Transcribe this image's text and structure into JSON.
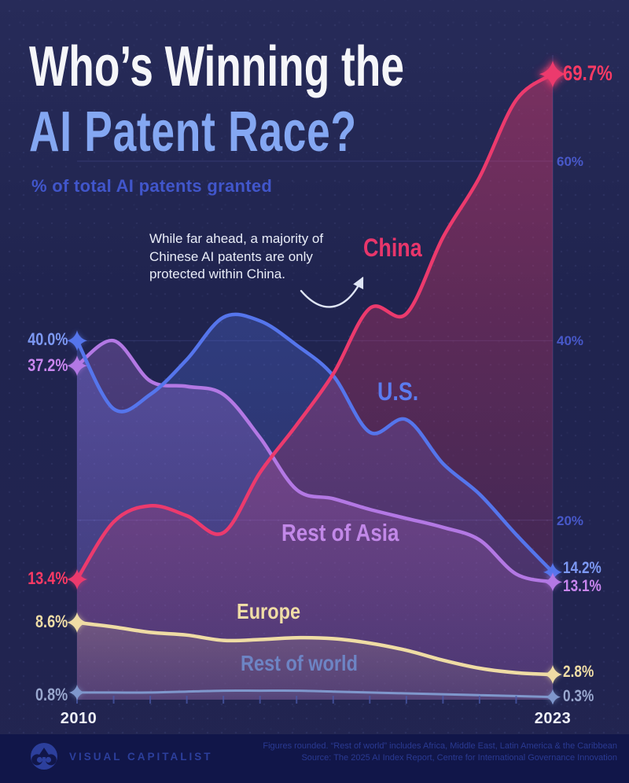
{
  "header": {
    "title_line1": "Who’s Winning the",
    "title_line2": "AI Patent Race?",
    "subtitle": "% of total AI patents granted"
  },
  "annotation": {
    "text": "While far ahead, a majority of Chinese AI patents are only protected within China."
  },
  "chart_data": {
    "type": "line",
    "title": "Who's Winning the AI Patent Race?",
    "ylabel": "% of total AI patents granted",
    "x": [
      2010,
      2011,
      2012,
      2013,
      2014,
      2015,
      2016,
      2017,
      2018,
      2019,
      2020,
      2021,
      2022,
      2023
    ],
    "x_axis_labels": [
      "2010",
      "2023"
    ],
    "ylim": [
      0,
      75
    ],
    "grid_y_ticks": [
      20,
      40,
      60
    ],
    "y_tick_labels": [
      "20%",
      "40%",
      "60%"
    ],
    "legend_position": "inline-labels",
    "series": [
      {
        "name": "China",
        "color": "#ec3a6d",
        "label_color": "#fb3a64",
        "name_color": "#e8366b",
        "start_label": "13.4%",
        "end_label": "69.7%",
        "values": [
          13.4,
          19.8,
          21.6,
          20.5,
          18.6,
          25.3,
          30.6,
          36.3,
          43.6,
          43.0,
          51.5,
          58.2,
          66.8,
          69.7
        ]
      },
      {
        "name": "U.S.",
        "color": "#5575ec",
        "label_color": "#7d99f4",
        "name_color": "#5b7bf0",
        "start_label": "40.0%",
        "end_label": "14.2%",
        "values": [
          40.0,
          32.4,
          34.0,
          37.9,
          42.6,
          42.2,
          39.5,
          36.1,
          29.8,
          31.2,
          26.3,
          22.9,
          18.4,
          14.2
        ]
      },
      {
        "name": "Rest of Asia",
        "color": "#b378e4",
        "label_color": "#c986ef",
        "name_color": "#c288e8",
        "start_label": "37.2%",
        "end_label": "13.1%",
        "values": [
          37.2,
          40.0,
          35.5,
          34.9,
          34.0,
          29.2,
          23.4,
          22.4,
          21.2,
          20.2,
          19.2,
          17.8,
          14.0,
          13.1
        ]
      },
      {
        "name": "Europe",
        "color": "#efdca4",
        "label_color": "#f0dda6",
        "name_color": "#f0dda6",
        "start_label": "8.6%",
        "end_label": "2.8%",
        "values": [
          8.6,
          8.1,
          7.5,
          7.2,
          6.6,
          6.7,
          6.9,
          6.8,
          6.3,
          5.5,
          4.4,
          3.5,
          3.0,
          2.8
        ]
      },
      {
        "name": "Rest of world",
        "color": "#7f97cc",
        "label_color": "#9aa8cf",
        "name_color": "#6d84c4",
        "start_label": "0.8%",
        "end_label": "0.3%",
        "values": [
          0.8,
          0.8,
          0.8,
          0.9,
          1.0,
          1.0,
          1.0,
          0.9,
          0.8,
          0.7,
          0.6,
          0.5,
          0.4,
          0.3
        ]
      }
    ]
  },
  "footer": {
    "brand": "VISUAL CAPITALIST",
    "note_line1": "Figures rounded. “Rest of world” includes Africa, Middle East, Latin America & the Caribbean",
    "note_line2": "Source: The 2025 AI Index Report, Centre for International Governance Innovation"
  }
}
